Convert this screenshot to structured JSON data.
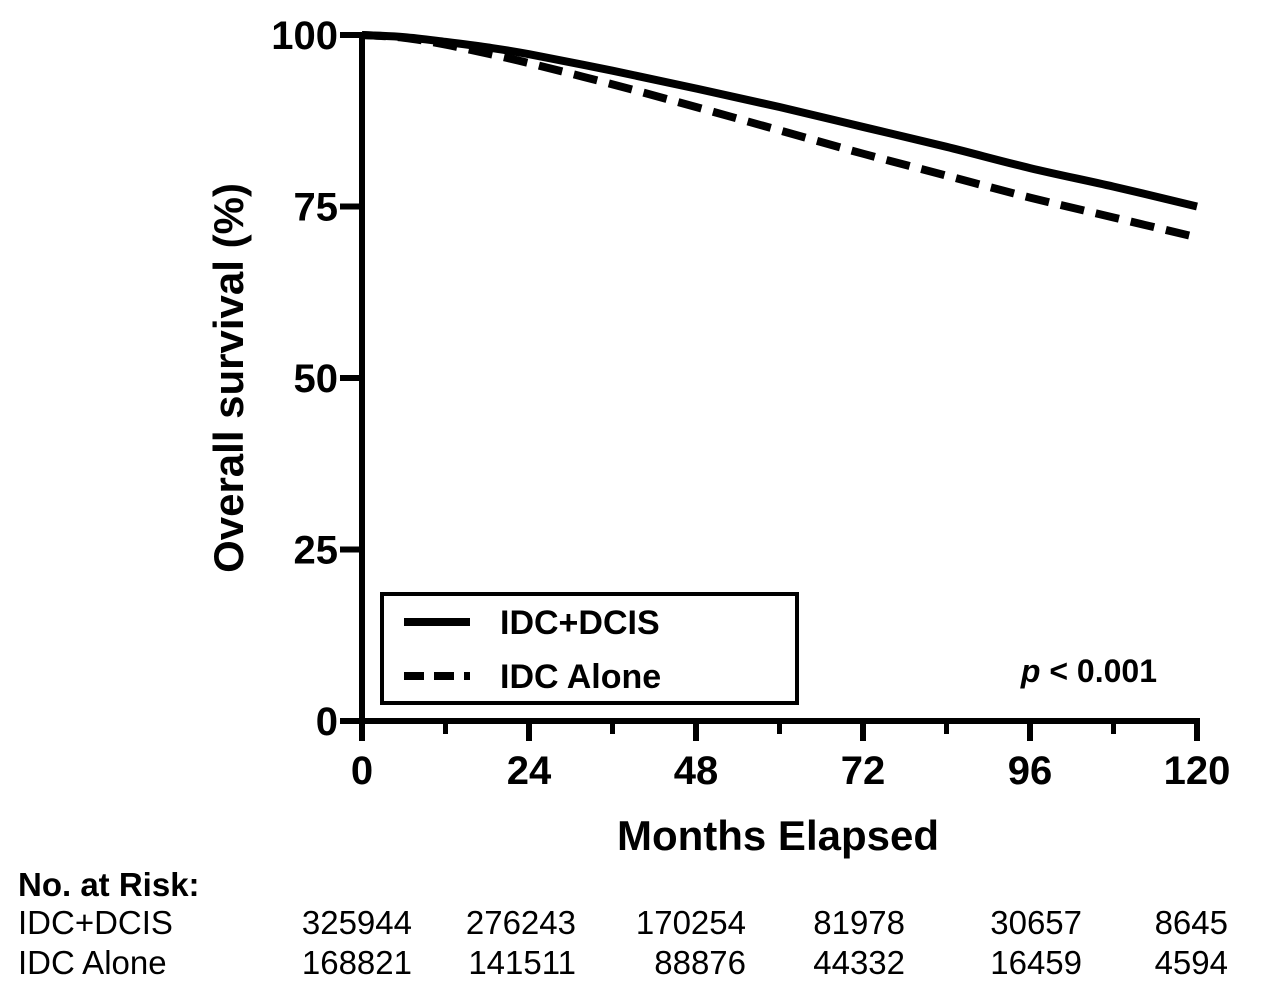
{
  "chart_data": {
    "type": "line",
    "title": "",
    "xlabel": "Months Elapsed",
    "ylabel": "Overall survival (%)",
    "xlim": [
      0,
      120
    ],
    "ylim": [
      0,
      100
    ],
    "x_ticks": [
      0,
      24,
      48,
      72,
      96,
      120
    ],
    "y_ticks": [
      0,
      25,
      50,
      75,
      100
    ],
    "x_minor_ticks": [
      12,
      36,
      60,
      84,
      108
    ],
    "grid": false,
    "legend_position": "bottom-left",
    "series": [
      {
        "name": "IDC+DCIS",
        "style": "solid",
        "x": [
          0,
          6,
          12,
          18,
          24,
          36,
          48,
          60,
          72,
          84,
          96,
          108,
          120
        ],
        "y": [
          100,
          99.7,
          99,
          98.2,
          97.2,
          94.8,
          92.2,
          89.5,
          86.6,
          83.7,
          80.6,
          77.9,
          75
        ]
      },
      {
        "name": "IDC Alone",
        "style": "dashed",
        "x": [
          0,
          6,
          12,
          18,
          24,
          36,
          48,
          60,
          72,
          84,
          96,
          108,
          120
        ],
        "y": [
          100,
          99.6,
          98.6,
          97.3,
          95.9,
          92.8,
          89.5,
          86.1,
          82.7,
          79.5,
          76.3,
          73.4,
          70.5
        ]
      }
    ],
    "annotation": {
      "italic": "p",
      "text": " < 0.001"
    }
  },
  "risk_table": {
    "heading": "No. at Risk:",
    "rows": [
      {
        "label": "IDC+DCIS",
        "values": [
          "325944",
          "276243",
          "170254",
          "81978",
          "30657",
          "8645"
        ]
      },
      {
        "label": "IDC Alone",
        "values": [
          "168821",
          "141511",
          "88876",
          "44332",
          "16459",
          "4594"
        ]
      }
    ]
  }
}
